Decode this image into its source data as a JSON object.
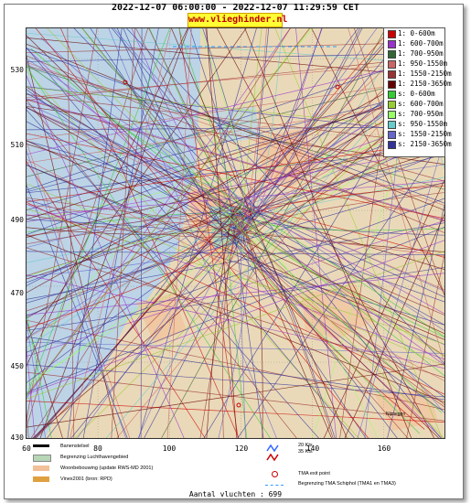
{
  "header": {
    "time_range": "2022-12-07 06:00:00 - 2022-12-07 11:29:59 CET",
    "site": "www.vlieghinder.nl"
  },
  "axes": {
    "y_ticks": [
      "530",
      "510",
      "490",
      "470",
      "450",
      "430"
    ],
    "x_ticks": [
      "60",
      "80",
      "100",
      "120",
      "140",
      "160"
    ],
    "x_values": [
      60,
      80,
      100,
      120,
      140,
      160
    ],
    "y_values": [
      530,
      510,
      490,
      470,
      450,
      430
    ],
    "xlim": [
      60,
      177
    ],
    "ylim": [
      430,
      538
    ]
  },
  "legend": [
    {
      "label": "1: 0-600m",
      "color": "#cc0000"
    },
    {
      "label": "1: 600-700m",
      "color": "#9933cc"
    },
    {
      "label": "1: 700-950m",
      "color": "#336633"
    },
    {
      "label": "1: 950-1550m",
      "color": "#cc6666"
    },
    {
      "label": "1: 1550-2150m",
      "color": "#993333"
    },
    {
      "label": "1: 2150-3650m",
      "color": "#660000"
    },
    {
      "label": "s: 0-600m",
      "color": "#33cc33"
    },
    {
      "label": "s: 600-700m",
      "color": "#99cc33"
    },
    {
      "label": "s: 700-950m",
      "color": "#99ff66"
    },
    {
      "label": "s: 950-1550m",
      "color": "#66cccc"
    },
    {
      "label": "s: 1550-2150m",
      "color": "#6666cc"
    },
    {
      "label": "s: 2150-3650m",
      "color": "#333399"
    }
  ],
  "map_legend": {
    "runway": "Banenstelsel",
    "airport_boundary": "Begrenzing Luchthavengebied",
    "housing": "Woonbebouwing (update RWS-MD 2001)",
    "vinex": "Vinex2001 (bron: RPD)",
    "wind_20": "20 Kts",
    "wind_35": "35 Kts",
    "tma_exit": "TMA exit point",
    "tma_boundary": "Begrenzing TMA Schiphol  (TMA1 en TMA3)"
  },
  "map_labels": {
    "place": "Nijmegen"
  },
  "colors": {
    "sea": "#bcd4e6",
    "land": "#ead9b8",
    "urban": "#f2c098",
    "airport": "#b6d6b6",
    "grid": "#888888"
  },
  "footer": {
    "count_label": "Aantal vluchten : 699"
  }
}
